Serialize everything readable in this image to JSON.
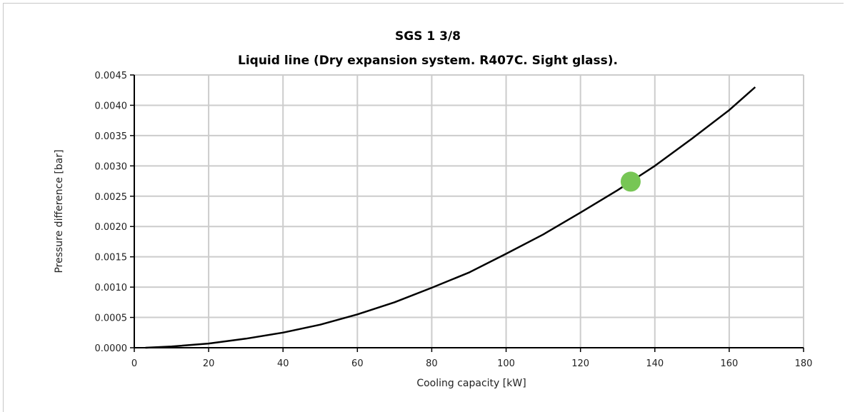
{
  "chart_data": {
    "type": "line",
    "title": "SGS 1 3/8",
    "subtitle": "Liquid line (Dry expansion system. R407C. Sight glass).",
    "xlabel": "Cooling capacity [kW]",
    "ylabel": "Pressure difference [bar]",
    "xlim": [
      0,
      180
    ],
    "ylim": [
      0,
      0.0045
    ],
    "x_ticks": [
      "0",
      "20",
      "40",
      "60",
      "80",
      "100",
      "120",
      "140",
      "160",
      "180"
    ],
    "y_ticks": [
      "0.0000",
      "0.0005",
      "0.0010",
      "0.0015",
      "0.0020",
      "0.0025",
      "0.0030",
      "0.0035",
      "0.0040",
      "0.0045"
    ],
    "grid": true,
    "series": [
      {
        "line_color": "#000000",
        "x": [
          3,
          10,
          20,
          30,
          40,
          50,
          60,
          70,
          80,
          90,
          100,
          110,
          120,
          130,
          140,
          150,
          160,
          167
        ],
        "y": [
          0.0,
          2e-05,
          7e-05,
          0.00015,
          0.00025,
          0.00038,
          0.00055,
          0.00075,
          0.00099,
          0.00124,
          0.00155,
          0.00187,
          0.00223,
          0.0026,
          0.003,
          0.00345,
          0.00392,
          0.0043
        ]
      }
    ],
    "marker": {
      "x": 133.5,
      "y": 0.00274,
      "color": "#77c655"
    }
  }
}
